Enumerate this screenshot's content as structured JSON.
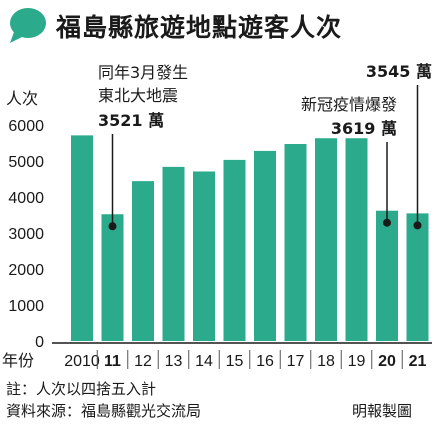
{
  "title": "福島縣旅遊地點遊客人次",
  "colors": {
    "bar": "#2bab8c",
    "accent": "#2bab8c",
    "text": "#1a1a1a"
  },
  "chart_data": {
    "type": "bar",
    "title": "福島縣旅遊地點遊客人次",
    "ylabel": "人次",
    "xlabel": "年份",
    "ylim": [
      0,
      6000
    ],
    "yticks": [
      "0",
      "1000",
      "2000",
      "3000",
      "4000",
      "5000",
      "6000"
    ],
    "categories": [
      "2010",
      "11",
      "12",
      "13",
      "14",
      "15",
      "16",
      "17",
      "18",
      "19",
      "20",
      "21"
    ],
    "bold_categories": [
      "11",
      "20",
      "21"
    ],
    "values": [
      5712,
      3521,
      4441,
      4837,
      4709,
      5031,
      5280,
      5472,
      5632,
      5632,
      3619,
      3545
    ],
    "annotations": [
      {
        "category": "11",
        "lines": [
          "同年3月發生",
          "東北大地震"
        ],
        "value_label": "3521 萬"
      },
      {
        "category": "20",
        "lines": [
          "新冠疫情爆發"
        ],
        "value_label": "3619 萬"
      },
      {
        "category": "21",
        "lines": [],
        "value_label": "3545 萬"
      }
    ]
  },
  "footer": {
    "note": "註：人次以四捨五入計",
    "source": "資料來源：福島縣觀光交流局",
    "credit": "明報製圖"
  }
}
